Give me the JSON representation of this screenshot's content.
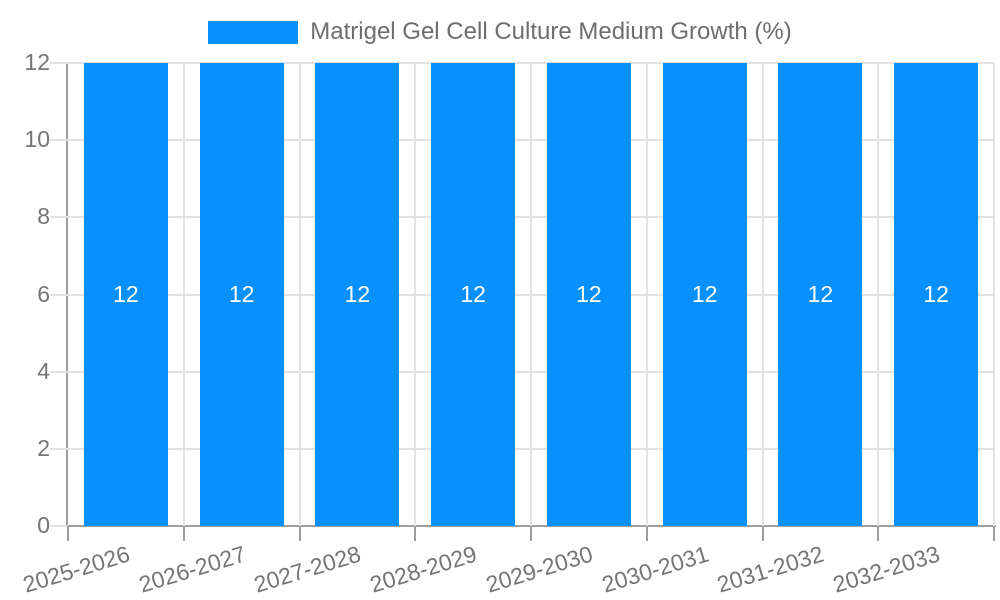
{
  "chart_data": {
    "type": "bar",
    "title": "",
    "legend_entries": [
      "Matrigel Gel Cell Culture Medium Growth (%)"
    ],
    "legend_position": "top-center",
    "categories": [
      "2025-2026",
      "2026-2027",
      "2027-2028",
      "2028-2029",
      "2029-2030",
      "2030-2031",
      "2031-2032",
      "2032-2033"
    ],
    "series": [
      {
        "name": "Matrigel Gel Cell Culture Medium Growth (%)",
        "values": [
          12,
          12,
          12,
          12,
          12,
          12,
          12,
          12
        ]
      }
    ],
    "bar_labels": [
      "12",
      "12",
      "12",
      "12",
      "12",
      "12",
      "12",
      "12"
    ],
    "xlabel": "",
    "ylabel": "",
    "ylim": [
      0,
      12
    ],
    "yticks": [
      0,
      2,
      4,
      6,
      8,
      10,
      12
    ],
    "grid": true,
    "x_label_rotation_deg": -17,
    "colors": {
      "bar": "#0990FF",
      "bar_label": "#FFFFFF",
      "axis_text": "#757575",
      "legend_text": "#6E6E6E",
      "grid_line": "#E2E2E2",
      "axis_line": "#9E9E9E",
      "background": "#FFFFFF"
    }
  }
}
